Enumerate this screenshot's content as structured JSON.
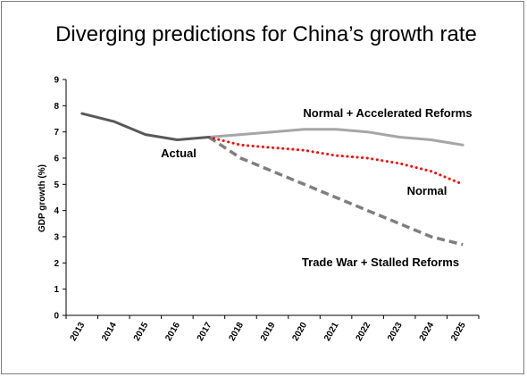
{
  "chart_data": {
    "type": "line",
    "title": "Diverging predictions for China’s growth rate",
    "ylabel": "GDP growth (%)",
    "xlabel": "",
    "ylim": [
      0,
      9
    ],
    "yticks": [
      0,
      1,
      2,
      3,
      4,
      5,
      6,
      7,
      8,
      9
    ],
    "categories": [
      "2013",
      "2014",
      "2015",
      "2016",
      "2017",
      "2018",
      "2019",
      "2020",
      "2021",
      "2022",
      "2023",
      "2024",
      "2025"
    ],
    "grid": false,
    "legend": "none",
    "series": [
      {
        "name": "Actual",
        "color": "#595959",
        "style": "solid",
        "values": [
          7.7,
          7.4,
          6.9,
          6.7,
          6.8,
          null,
          null,
          null,
          null,
          null,
          null,
          null,
          null
        ]
      },
      {
        "name": "Normal + Accelerated Reforms",
        "color": "#a6a6a6",
        "style": "solid",
        "values": [
          null,
          null,
          null,
          null,
          6.8,
          6.9,
          7.0,
          7.1,
          7.1,
          7.0,
          6.8,
          6.7,
          6.5
        ]
      },
      {
        "name": "Normal",
        "color": "#ff0000",
        "style": "dotted",
        "values": [
          null,
          null,
          null,
          null,
          6.8,
          6.5,
          6.4,
          6.3,
          6.1,
          6.0,
          5.8,
          5.5,
          5.0
        ]
      },
      {
        "name": "Trade War + Stalled Reforms",
        "color": "#7f7f7f",
        "style": "dashed",
        "values": [
          null,
          null,
          null,
          null,
          6.8,
          6.0,
          5.5,
          5.0,
          4.5,
          4.0,
          3.5,
          3.0,
          2.7
        ]
      }
    ]
  }
}
